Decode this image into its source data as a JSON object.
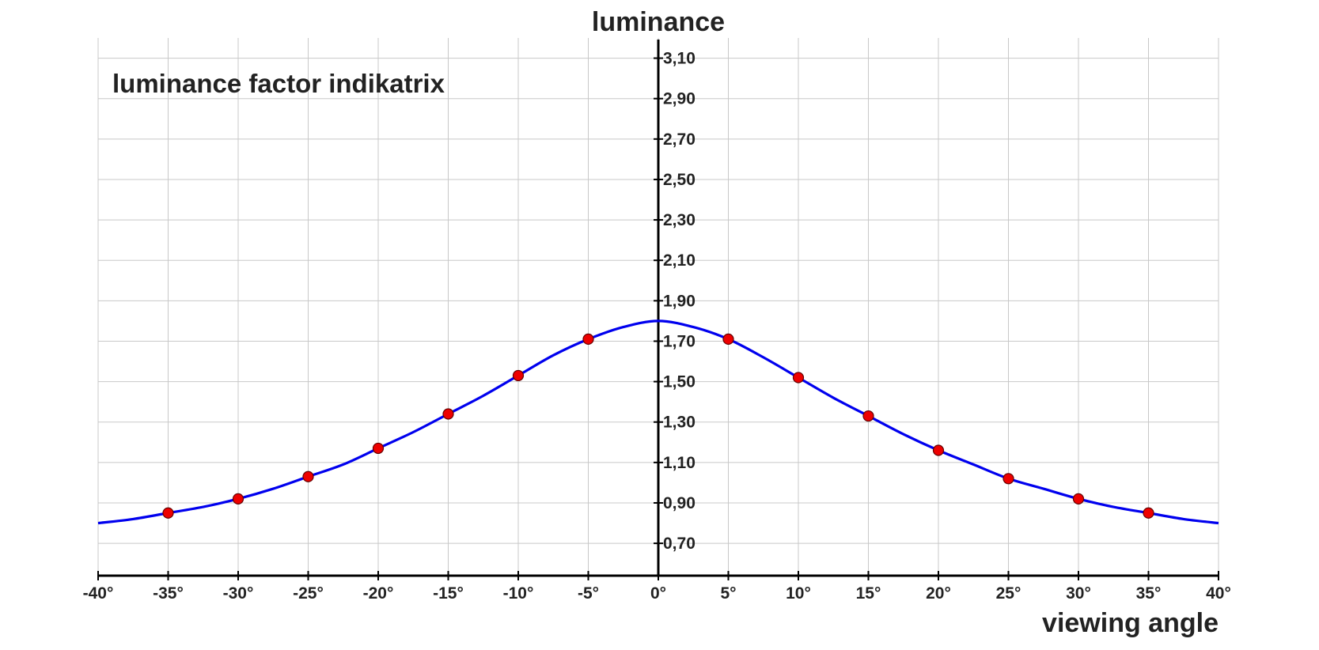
{
  "chart_data": {
    "type": "line",
    "title": "luminance factor indikatrix",
    "xlabel": "viewing angle",
    "ylabel": "luminance",
    "xlim": [
      -40,
      40
    ],
    "ylim": [
      0.54,
      3.2
    ],
    "grid": true,
    "x_ticks": [
      {
        "value": -40,
        "label": "-40°"
      },
      {
        "value": -35,
        "label": "-35°"
      },
      {
        "value": -30,
        "label": "-30°"
      },
      {
        "value": -25,
        "label": "-25°"
      },
      {
        "value": -20,
        "label": "-20°"
      },
      {
        "value": -15,
        "label": "-15°"
      },
      {
        "value": -10,
        "label": "-10°"
      },
      {
        "value": -5,
        "label": "-5°"
      },
      {
        "value": 0,
        "label": "0°"
      },
      {
        "value": 5,
        "label": "5°"
      },
      {
        "value": 10,
        "label": "10°"
      },
      {
        "value": 15,
        "label": "15°"
      },
      {
        "value": 20,
        "label": "20°"
      },
      {
        "value": 25,
        "label": "25°"
      },
      {
        "value": 30,
        "label": "30°"
      },
      {
        "value": 35,
        "label": "35°"
      },
      {
        "value": 40,
        "label": "40°"
      }
    ],
    "y_ticks": [
      {
        "value": 0.7,
        "label": "0,70"
      },
      {
        "value": 0.9,
        "label": "0,90"
      },
      {
        "value": 1.1,
        "label": "1,10"
      },
      {
        "value": 1.3,
        "label": "1,30"
      },
      {
        "value": 1.5,
        "label": "1,50"
      },
      {
        "value": 1.7,
        "label": "1,70"
      },
      {
        "value": 1.9,
        "label": "1,90"
      },
      {
        "value": 2.1,
        "label": "2,10"
      },
      {
        "value": 2.3,
        "label": "2,30"
      },
      {
        "value": 2.5,
        "label": "2,50"
      },
      {
        "value": 2.7,
        "label": "2,70"
      },
      {
        "value": 2.9,
        "label": "2,90"
      },
      {
        "value": 3.1,
        "label": "3,10"
      }
    ],
    "curve": {
      "color": "#0000ee",
      "x": [
        -40,
        -37.5,
        -35,
        -32.5,
        -30,
        -27.5,
        -25,
        -22.5,
        -20,
        -17.5,
        -15,
        -12.5,
        -10,
        -7.5,
        -5,
        -2.5,
        0,
        2.5,
        5,
        7.5,
        10,
        12.5,
        15,
        17.5,
        20,
        22.5,
        25,
        27.5,
        30,
        32.5,
        35,
        37.5,
        40
      ],
      "y": [
        0.8,
        0.82,
        0.85,
        0.88,
        0.92,
        0.97,
        1.03,
        1.09,
        1.17,
        1.25,
        1.34,
        1.43,
        1.53,
        1.63,
        1.71,
        1.77,
        1.8,
        1.77,
        1.71,
        1.62,
        1.52,
        1.42,
        1.33,
        1.24,
        1.16,
        1.09,
        1.02,
        0.97,
        0.92,
        0.88,
        0.85,
        0.82,
        0.8
      ]
    },
    "points": {
      "color": "#ee0000",
      "x": [
        -35,
        -30,
        -25,
        -20,
        -15,
        -10,
        -5,
        5,
        10,
        15,
        20,
        25,
        30,
        35
      ],
      "y": [
        0.85,
        0.92,
        1.03,
        1.17,
        1.34,
        1.53,
        1.71,
        1.71,
        1.52,
        1.33,
        1.16,
        1.02,
        0.92,
        0.85
      ]
    }
  }
}
